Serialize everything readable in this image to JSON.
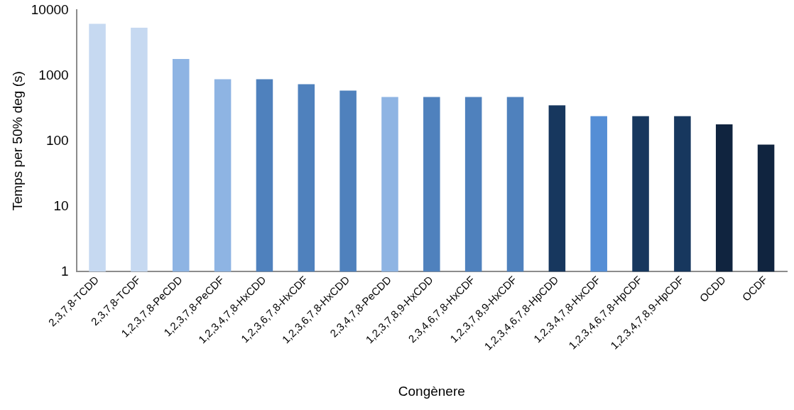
{
  "chart_data": {
    "type": "bar",
    "xlabel": "Congènere",
    "ylabel": "Temps per 50% deg (s)",
    "categories": [
      "2,3,7,8-TCDD",
      "2,3,7,8-TCDF",
      "1,2,3,7,8-PeCDD",
      "1,2,3,7,8-PeCDF",
      "1,2,3,4,7,8-HxCDD",
      "1,2,3,6,7,8-HxCDF",
      "1,2,3,6,7,8-HxCDD",
      "2,3,4,7,8-PeCDD",
      "1,2,3,7,8,9-HxCDD",
      "2,3,4,6,7,8-HxCDF",
      "1,2,3,7,8,9-HxCDF",
      "1,2,3,4,6,7,8-HpCDD",
      "1,2,3,4,7,8-HxCDF",
      "1,2,3,4,6,7,8-HpCDF",
      "1,2,3,4,7,8,9-HpCDF",
      "OCDD",
      "OCDF"
    ],
    "values": [
      6200,
      5400,
      1800,
      880,
      880,
      740,
      590,
      470,
      470,
      470,
      470,
      350,
      240,
      240,
      240,
      180,
      88
    ],
    "colors": [
      "#c6d9f1",
      "#c6d9f1",
      "#8eb4e3",
      "#8eb4e3",
      "#4f81bd",
      "#4f81bd",
      "#4f81bd",
      "#8eb4e3",
      "#4f81bd",
      "#4f81bd",
      "#4f81bd",
      "#17375e",
      "#558ed5",
      "#17375e",
      "#17375e",
      "#10243f",
      "#10243f"
    ],
    "log": "y",
    "ylim": [
      1,
      10000
    ],
    "yticks": [
      1,
      10,
      100,
      1000,
      10000
    ],
    "grid": false,
    "legend": false
  }
}
